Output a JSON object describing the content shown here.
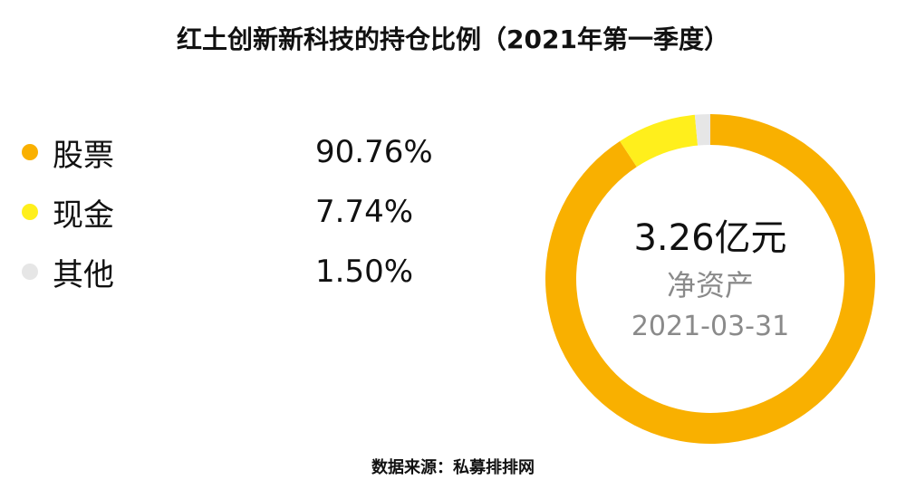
{
  "chart_data": {
    "type": "pie",
    "title": "红土创新新科技的持仓比例（2021年第一季度）",
    "categories": [
      "股票",
      "现金",
      "其他"
    ],
    "values": [
      90.76,
      7.74,
      1.5
    ],
    "value_labels": [
      "90.76%",
      "7.74%",
      "1.50%"
    ],
    "colors": [
      "#F9B000",
      "#FFEF1C",
      "#E6E6E6"
    ],
    "donut": true,
    "center": {
      "value": "3.26亿元",
      "label": "净资产",
      "date": "2021-03-31"
    },
    "legend_position": "left",
    "source": "数据来源：私募排排网"
  }
}
